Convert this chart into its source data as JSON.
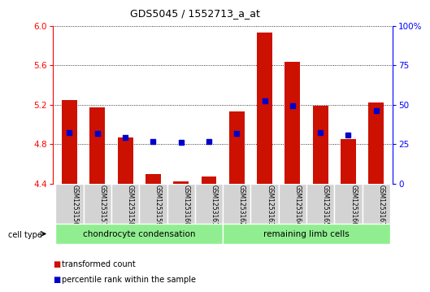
{
  "title": "GDS5045 / 1552713_a_at",
  "samples": [
    "GSM1253156",
    "GSM1253157",
    "GSM1253158",
    "GSM1253159",
    "GSM1253160",
    "GSM1253161",
    "GSM1253162",
    "GSM1253163",
    "GSM1253164",
    "GSM1253165",
    "GSM1253166",
    "GSM1253167"
  ],
  "red_values": [
    5.25,
    5.17,
    4.87,
    4.5,
    4.42,
    4.47,
    5.13,
    5.93,
    5.63,
    5.19,
    4.85,
    5.22
  ],
  "blue_values": [
    4.92,
    4.91,
    4.87,
    4.83,
    4.82,
    4.83,
    4.91,
    5.24,
    5.19,
    4.92,
    4.89,
    5.14
  ],
  "ymin": 4.4,
  "ymax": 6.0,
  "yticks": [
    4.4,
    4.8,
    5.2,
    5.6,
    6.0
  ],
  "y2ticks": [
    0,
    25,
    50,
    75,
    100
  ],
  "y2labels": [
    "0",
    "25",
    "50",
    "75",
    "100%"
  ],
  "bar_width": 0.55,
  "red_color": "#cc1100",
  "blue_color": "#0000cc",
  "group1_label": "chondrocyte condensation",
  "group2_label": "remaining limb cells",
  "group1_count": 6,
  "group2_count": 6,
  "cell_type_label": "cell type",
  "legend1": "transformed count",
  "legend2": "percentile rank within the sample",
  "xlabel_bg": "#d3d3d3",
  "group_bg": "#90ee90"
}
